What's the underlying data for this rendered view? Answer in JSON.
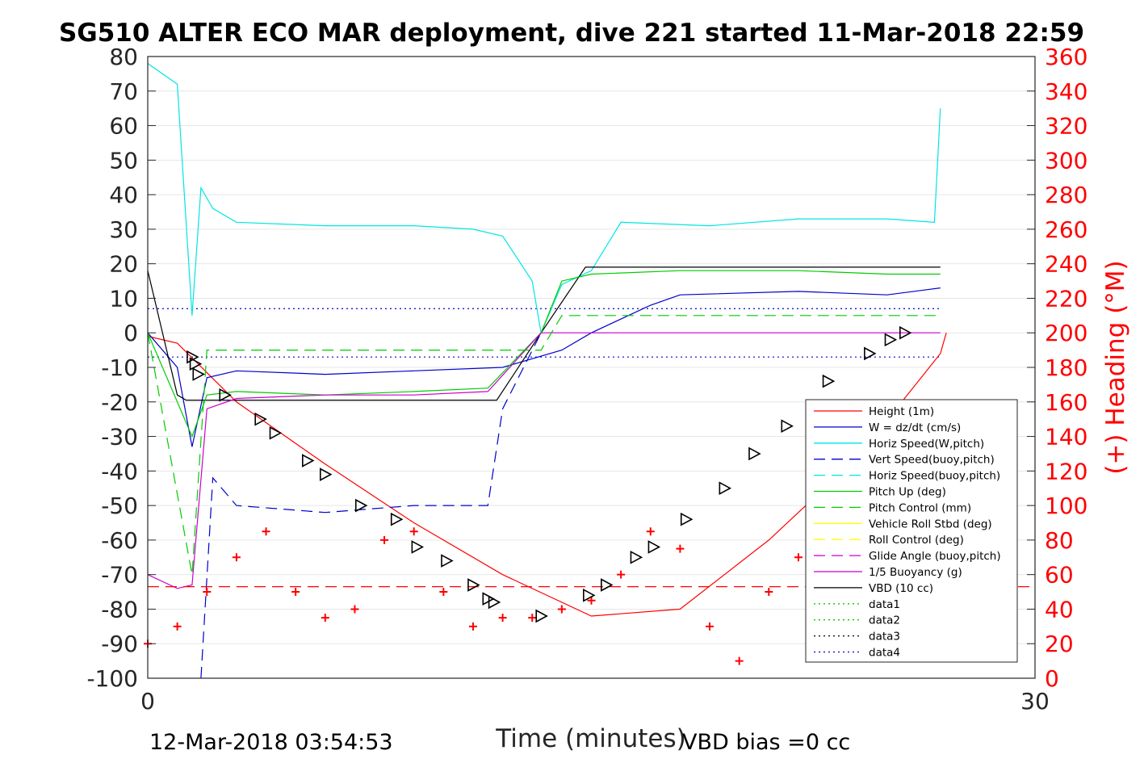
{
  "chart_data": {
    "type": "line",
    "title": "SG510 ALTER ECO MAR deployment, dive 221 started 11-Mar-2018 22:59",
    "xlabel": "Time (minutes)",
    "ylabel": "",
    "y2label": "(+) Heading (°M)",
    "xlim": [
      0,
      30
    ],
    "ylim": [
      -100,
      80
    ],
    "y2lim": [
      0,
      360
    ],
    "xticks": [
      "0",
      "30"
    ],
    "yticks": [
      "80",
      "70",
      "60",
      "50",
      "40",
      "30",
      "20",
      "10",
      "0",
      "-10",
      "-20",
      "-30",
      "-40",
      "-50",
      "-60",
      "-70",
      "-80",
      "-90",
      "-100"
    ],
    "y2ticks": [
      "360",
      "340",
      "320",
      "300",
      "280",
      "260",
      "240",
      "220",
      "200",
      "180",
      "160",
      "140",
      "120",
      "100",
      "80",
      "60",
      "40",
      "20",
      "0"
    ],
    "footer_left": "12-Mar-2018 03:54:53",
    "footer_right": "VBD bias =0 cc",
    "grid": true,
    "legend_position": "lower-right",
    "legend": [
      {
        "label": "Height (1m)",
        "color": "#ff0000",
        "style": "solid"
      },
      {
        "label": "W = dz/dt (cm/s)",
        "color": "#0000cc",
        "style": "solid"
      },
      {
        "label": "Horiz Speed(W,pitch)",
        "color": "#00e5e5",
        "style": "solid"
      },
      {
        "label": "Vert Speed(buoy,pitch)",
        "color": "#0000cc",
        "style": "dashed"
      },
      {
        "label": "Horiz Speed(buoy,pitch)",
        "color": "#00e5e5",
        "style": "dashed"
      },
      {
        "label": "Pitch Up (deg)",
        "color": "#00cc00",
        "style": "solid"
      },
      {
        "label": "Pitch Control (mm)",
        "color": "#00cc00",
        "style": "dashed"
      },
      {
        "label": "Vehicle Roll Stbd (deg)",
        "color": "#ffff00",
        "style": "solid"
      },
      {
        "label": "Roll Control (deg)",
        "color": "#ffff00",
        "style": "dashed"
      },
      {
        "label": "Glide Angle (buoy,pitch)",
        "color": "#cc00cc",
        "style": "dashed"
      },
      {
        "label": "1/5 Buoyancy (g)",
        "color": "#cc00cc",
        "style": "solid"
      },
      {
        "label": "VBD (10 cc)",
        "color": "#000000",
        "style": "solid"
      },
      {
        "label": "data1",
        "color": "#00cc00",
        "style": "dotted"
      },
      {
        "label": "data2",
        "color": "#00cc00",
        "style": "dotted"
      },
      {
        "label": "data3",
        "color": "#000000",
        "style": "dotted"
      },
      {
        "label": "data4",
        "color": "#0000cc",
        "style": "dotted"
      }
    ],
    "series": [
      {
        "name": "Height (1m)",
        "x": [
          0,
          1,
          3,
          6,
          9,
          12,
          15,
          18,
          21,
          24,
          26.8,
          27
        ],
        "y": [
          -1,
          -3,
          -20,
          -38,
          -55,
          -70,
          -82,
          -80,
          -60,
          -36,
          -6,
          0
        ]
      },
      {
        "name": "W = dz/dt (cm/s)",
        "x": [
          0,
          1,
          1.5,
          2,
          3,
          6,
          9,
          12,
          14,
          15,
          17,
          18,
          22,
          25,
          26.8
        ],
        "y": [
          0,
          -10,
          -33,
          -13,
          -11,
          -12,
          -11,
          -10,
          -5,
          0,
          8,
          11,
          12,
          11,
          13
        ]
      },
      {
        "name": "Horiz Speed(W,pitch)",
        "x": [
          0,
          1,
          1.5,
          1.8,
          2.2,
          3,
          6,
          9,
          11,
          12,
          13,
          13.3,
          14,
          15,
          16,
          19,
          22,
          25,
          26.6,
          26.8
        ],
        "y": [
          78,
          72,
          5,
          42,
          36,
          32,
          31,
          31,
          30,
          28,
          15,
          0,
          14,
          18,
          32,
          31,
          33,
          33,
          32,
          65
        ]
      },
      {
        "name": "VBD (10 cc)",
        "x": [
          0,
          1,
          1.3,
          6,
          10,
          11.8,
          13.3,
          14.8,
          26.8
        ],
        "y": [
          18,
          -18,
          -19.5,
          -19.5,
          -19.5,
          -19.5,
          0,
          19,
          19
        ]
      },
      {
        "name": "Pitch Up (deg)",
        "x": [
          0,
          1.5,
          2,
          3,
          6,
          9,
          11.5,
          13.3,
          14,
          15,
          18,
          22,
          25,
          26.8
        ],
        "y": [
          0,
          -30,
          -18,
          -17,
          -18,
          -17,
          -16,
          0,
          15,
          17,
          18,
          18,
          17,
          17
        ]
      },
      {
        "name": "1/5 Buoyancy (g)",
        "x": [
          0,
          1,
          1.5,
          2,
          3,
          6,
          9,
          11.5,
          13.3,
          14,
          26.8
        ],
        "y": [
          -70,
          -74,
          -73,
          -22,
          -19,
          -18,
          -18,
          -17,
          0,
          0,
          0
        ]
      },
      {
        "name": "Pitch Control (mm)",
        "x": [
          0,
          1.5,
          2,
          13.3,
          14,
          26.8
        ],
        "y": [
          0,
          -70,
          -5,
          -5,
          5,
          5
        ]
      },
      {
        "name": "Vert Speed(buoy,pitch)",
        "x": [
          1.8,
          2.2,
          3,
          6,
          9,
          11.5,
          12,
          13.3
        ],
        "y": [
          -100,
          -42,
          -50,
          -52,
          -50,
          -50,
          -22,
          0
        ]
      },
      {
        "name": "Heading (°M)",
        "axis": "y2",
        "x": [
          0,
          1,
          2,
          3,
          4,
          5,
          6,
          7,
          8,
          9,
          10,
          11,
          12,
          13,
          14,
          15,
          16,
          17,
          18,
          19,
          20,
          21,
          22,
          23,
          24,
          25,
          26,
          27
        ],
        "y": [
          20,
          30,
          50,
          70,
          85,
          50,
          35,
          40,
          80,
          85,
          50,
          30,
          35,
          35,
          40,
          45,
          60,
          85,
          75,
          30,
          10,
          50,
          70,
          60,
          45,
          30,
          50,
          70
        ]
      },
      {
        "name": "Heading mean",
        "axis": "y2",
        "x": [
          0,
          30
        ],
        "y": [
          53,
          53
        ]
      }
    ],
    "markers": [
      {
        "name": "Height triangles",
        "x": [
          1.5,
          1.6,
          1.7,
          2.6,
          3.8,
          4.3,
          5.4,
          6.0,
          7.2,
          8.4,
          9.1,
          10.1,
          11.0,
          11.5,
          11.7,
          13.3,
          14.9,
          15.5,
          16.5,
          17.1,
          18.2,
          19.5,
          20.5,
          21.6,
          23.0,
          24.4,
          25.1,
          25.6
        ],
        "y": [
          -7,
          -9,
          -12,
          -18,
          -25,
          -29,
          -37,
          -41,
          -50,
          -54,
          -62,
          -66,
          -73,
          -77,
          -78,
          -82,
          -76,
          -73,
          -65,
          -62,
          -54,
          -45,
          -35,
          -27,
          -14,
          -6,
          -2,
          0
        ]
      }
    ]
  }
}
